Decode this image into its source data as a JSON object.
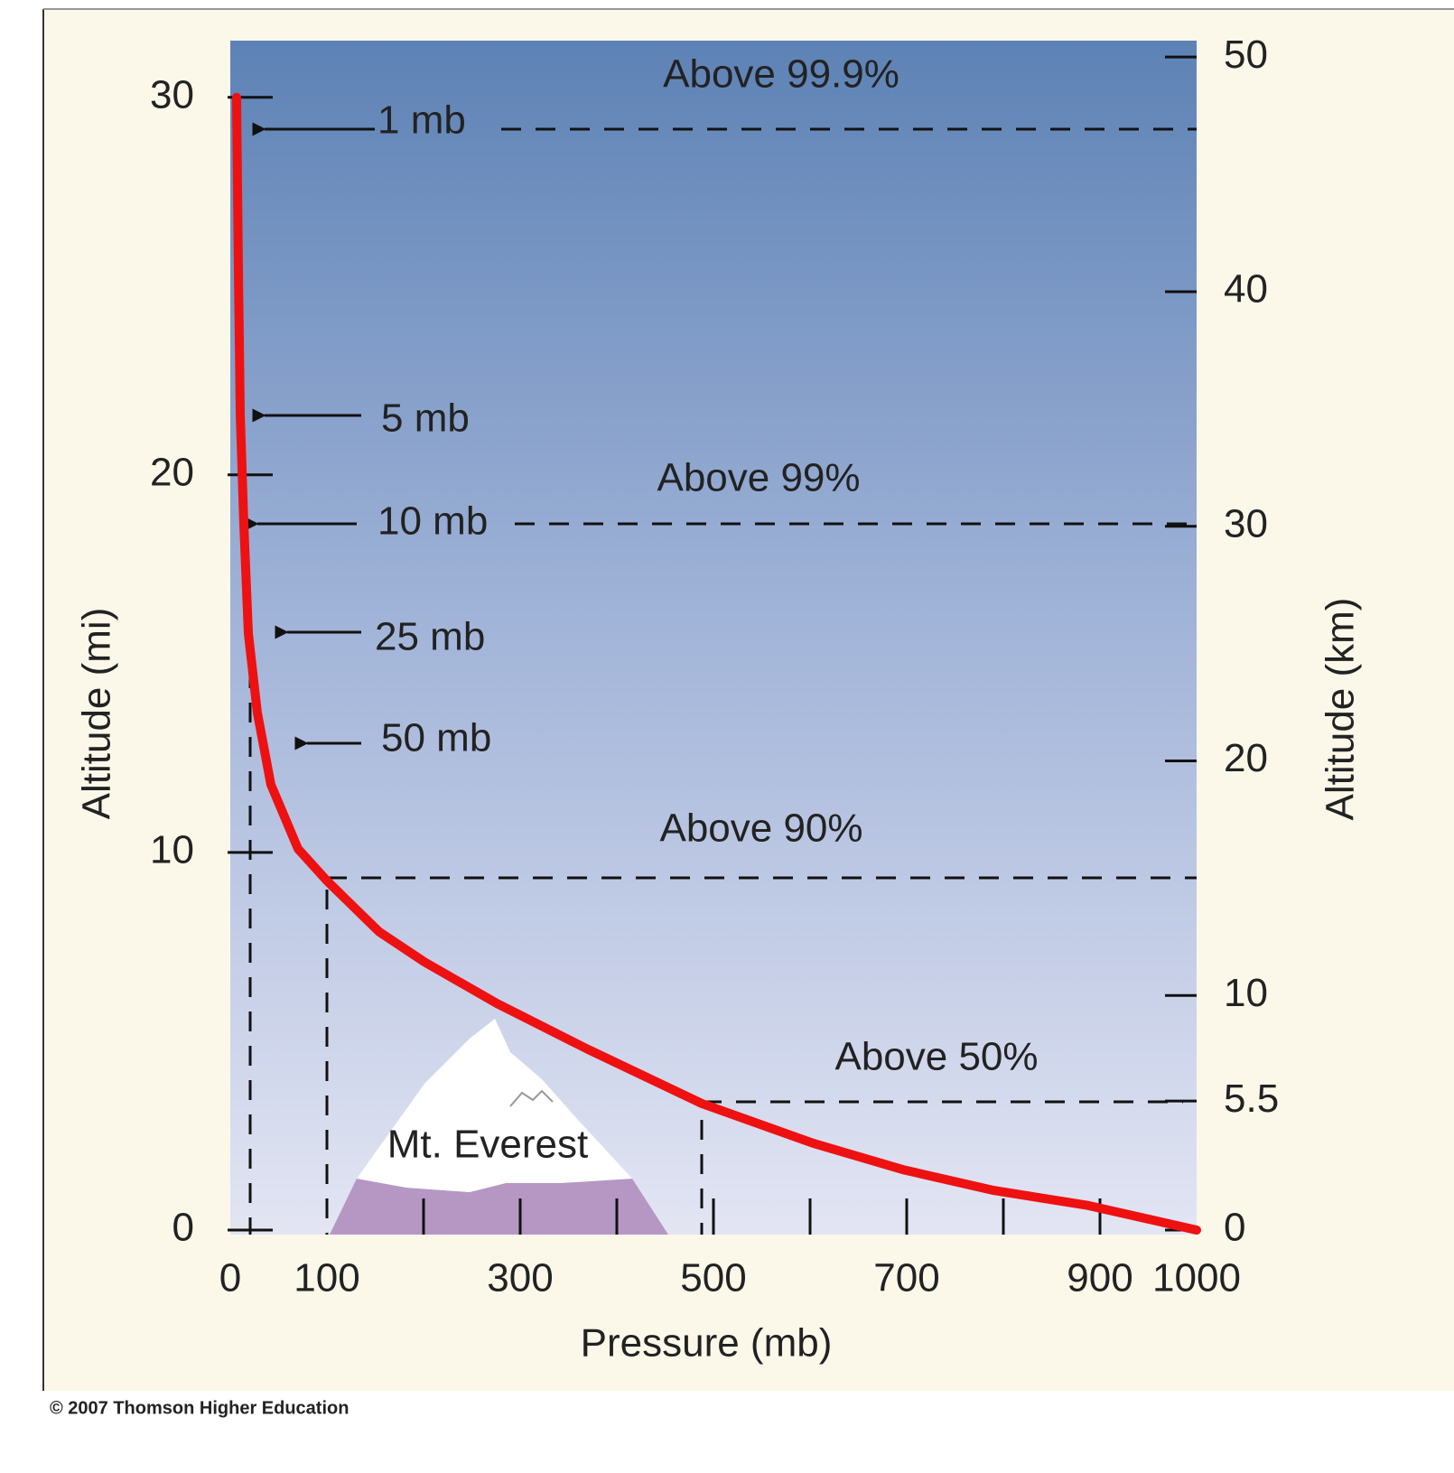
{
  "chart_data": {
    "type": "line",
    "xlabel": "Pressure (mb)",
    "ylabel": "Altitude (mi)",
    "y2label": "Altitude (km)",
    "x": [
      6.5,
      8.4,
      10.3,
      14,
      18.7,
      28,
      42,
      70,
      100,
      154,
      201,
      276,
      369,
      488,
      603,
      696,
      790,
      888,
      1000
    ],
    "values": [
      30,
      25.4,
      21.6,
      18.7,
      15.8,
      13.7,
      11.8,
      10.1,
      9.25,
      7.9,
      7.1,
      6,
      4.8,
      3.35,
      2.3,
      1.6,
      1.05,
      0.65,
      0
    ],
    "color": "#ee1111",
    "xlim": [
      0,
      1000
    ],
    "xticks": [
      0,
      100,
      300,
      500,
      700,
      900,
      1000
    ],
    "xminorticks": [
      200,
      300,
      400,
      500,
      600,
      700,
      800,
      900
    ],
    "ylim": [
      0,
      31.5
    ],
    "yticks": [
      0,
      10,
      20,
      30
    ],
    "y2lim": [
      0,
      50.7
    ],
    "y2ticks": [
      0,
      5.5,
      10,
      20,
      30,
      40,
      50
    ],
    "arrows": [
      "1 mb",
      "5 mb",
      "10 mb",
      "25 mb",
      "50 mb"
    ],
    "regions": [
      "Above 99.9%",
      "Above 99%",
      "Above 90%",
      "Above 50%"
    ],
    "mountain": "Mt. Everest"
  },
  "footer": "© 2007 Thomson Higher Education"
}
